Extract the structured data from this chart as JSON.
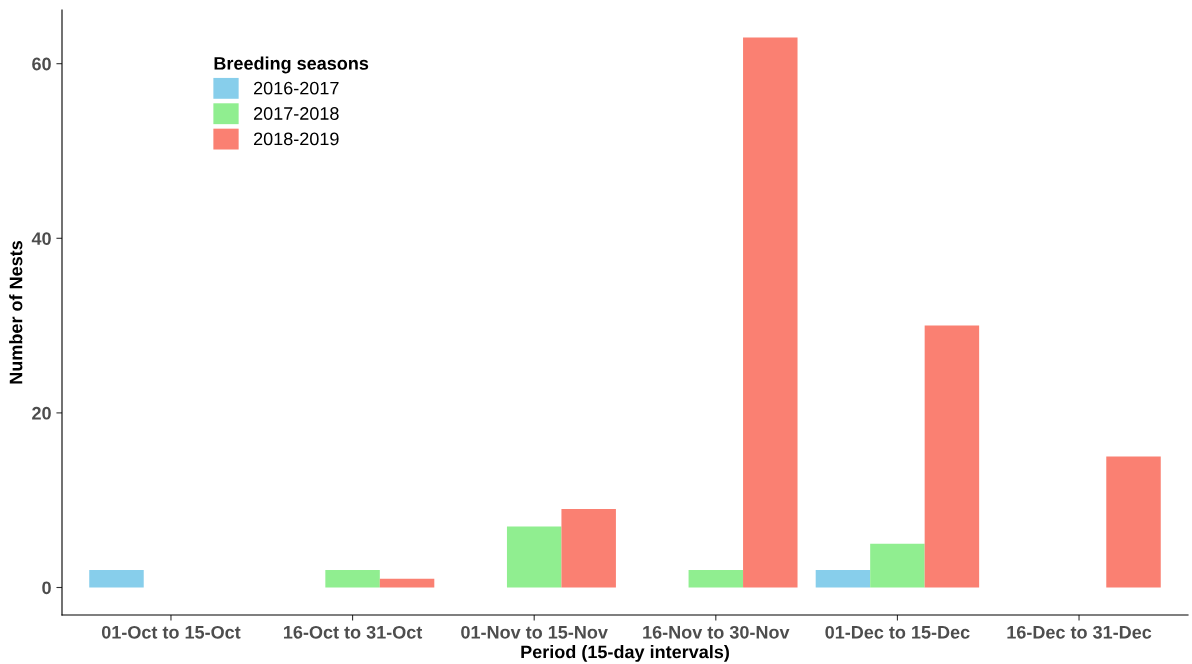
{
  "chart_data": {
    "type": "bar",
    "xlabel": "Period (15-day intervals)",
    "ylabel": "Number of Nests",
    "legend_title": "Breeding seasons",
    "categories": [
      "01-Oct to 15-Oct",
      "16-Oct to 31-Oct",
      "01-Nov to 15-Nov",
      "16-Nov to 30-Nov",
      "01-Dec to 15-Dec",
      "16-Dec to 31-Dec"
    ],
    "series": [
      {
        "name": "2016-2017",
        "color": "#87ceeb",
        "values": [
          2,
          0,
          0,
          0,
          2,
          0
        ]
      },
      {
        "name": "2017-2018",
        "color": "#90ee90",
        "values": [
          0,
          2,
          7,
          2,
          5,
          0
        ]
      },
      {
        "name": "2018-2019",
        "color": "#fa8072",
        "values": [
          0,
          1,
          9,
          63,
          30,
          15
        ]
      }
    ],
    "ylim": [
      -3.15,
      66.15
    ],
    "yticks": [
      0,
      20,
      40,
      60
    ],
    "grid": false,
    "legend": "top left"
  }
}
